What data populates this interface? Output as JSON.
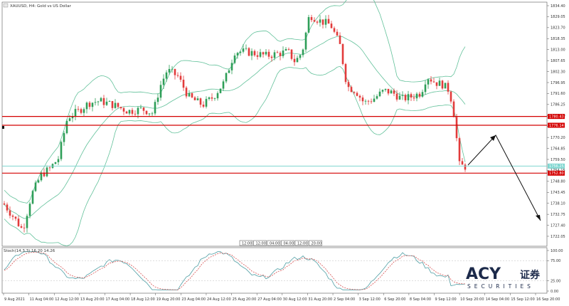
{
  "chart_title": "XAUUSD, H4:  Gold vs US Dollar",
  "indicator_label": "Stoch(14,3,3) 16.20 14.26",
  "brand": {
    "name": "ACY",
    "cn": "证券",
    "sub": "SECURITIES"
  },
  "colors": {
    "bull": "#2e9e58",
    "bear": "#e23b3b",
    "band": "#62c19a",
    "hline_red": "#d40000",
    "hline_teal": "#7fd6d0",
    "stoch_main": "#4f9fa5",
    "stoch_signal": "#d23b3b",
    "grid": "#c9c9c9",
    "price_tag_red": "#d40000",
    "price_tag_teal": "#7fd6d0"
  },
  "price_axis": {
    "ticks": [
      "1834.40",
      "1829.05",
      "1823.70",
      "1818.35",
      "1813.00",
      "1807.65",
      "1802.30",
      "1796.95",
      "1791.60",
      "1786.25",
      "1780.90",
      "1775.55",
      "1770.20",
      "1764.85",
      "1759.50",
      "1754.15",
      "1748.80",
      "1743.45",
      "1738.10",
      "1732.75",
      "1727.40",
      "1722.05"
    ],
    "tags": [
      "1780.43",
      "1776.14",
      "1756.25",
      "1752.80"
    ]
  },
  "stoch_axis": {
    "ticks": [
      "100.00",
      "75.00",
      "25.00",
      "0.00"
    ]
  },
  "time_axis": [
    "9 Aug 2021",
    "11 Aug 04:00",
    "12 Aug 12:00",
    "13 Aug 20:00",
    "17 Aug 04:00",
    "18 Aug 12:00",
    "19 Aug 20:00",
    "23 Aug 04:00",
    "24 Aug 12:00",
    "25 Aug 20:00",
    "27 Aug 04:00",
    "30 Aug 12:00",
    "31 Aug 20:00",
    "2 Sep 04:00",
    "3 Sep 12:00",
    "6 Sep 20:00",
    "8 Sep 04:00",
    "9 Sep 12:00",
    "10 Sep 20:00",
    "14 Sep 04:00",
    "15 Sep 12:00",
    "16 Sep 20:00"
  ],
  "mid_labels": [
    "12:00",
    "12:00",
    "04:00",
    "04:00",
    "12:00",
    "20:00"
  ]
}
